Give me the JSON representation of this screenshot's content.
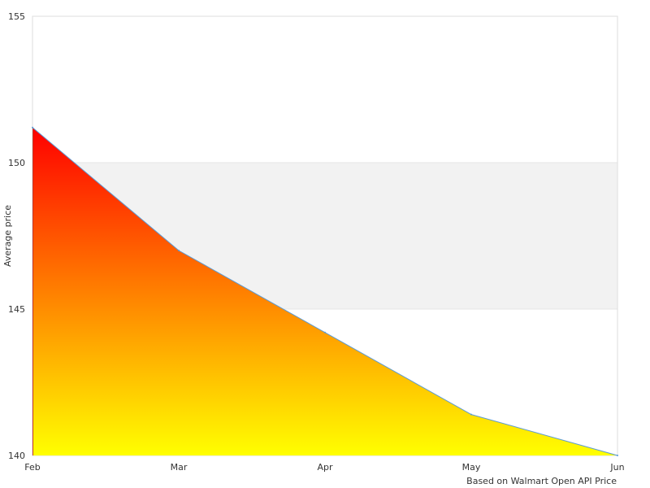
{
  "chart_data": {
    "type": "area",
    "x": [
      "Feb",
      "Mar",
      "Apr",
      "May",
      "Jun"
    ],
    "values": [
      151.2,
      147.0,
      144.2,
      141.4,
      140.0
    ],
    "ylabel": "Average price",
    "xlabel": "",
    "ylim": [
      140,
      155
    ],
    "yticks": [
      140,
      145,
      150,
      155
    ],
    "source_note": "Based on Walmart Open API Price",
    "alternating_band": [
      145,
      150
    ],
    "fill_gradient": {
      "top": "#ff0000",
      "bottom": "#ffff00"
    },
    "line_color": "#5b9bd5",
    "band_color": "#f2f2f2",
    "border_color": "#dddddd"
  }
}
